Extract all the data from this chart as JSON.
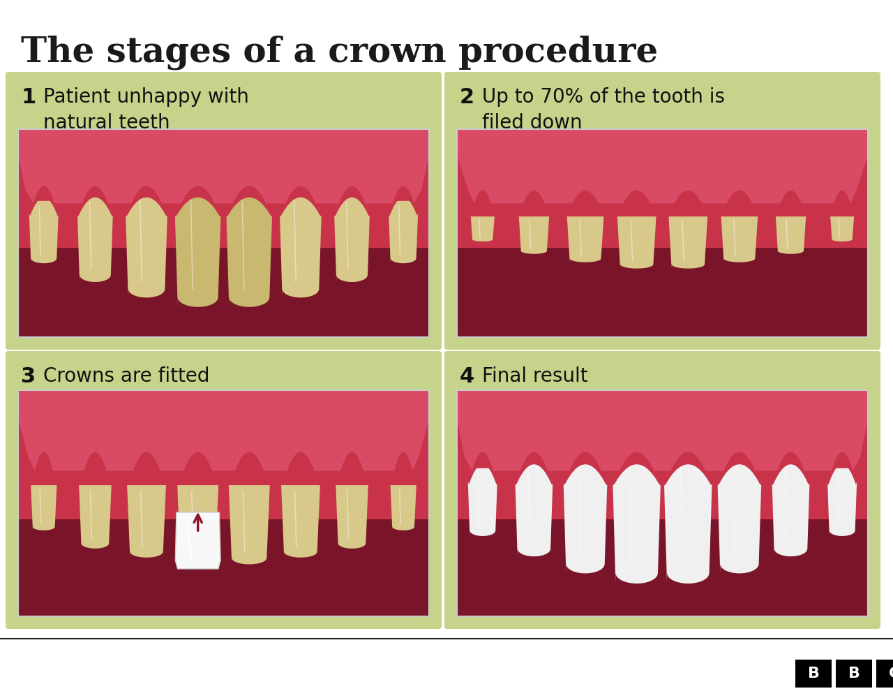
{
  "title": "The stages of a crown procedure",
  "title_fontsize": 36,
  "title_color": "#1a1a1a",
  "background_color": "#ffffff",
  "panel_bg": "#c5d48a",
  "gum_dark": "#c8334a",
  "gum_mid": "#d94060",
  "gum_light": "#e8607a",
  "mouth_bg": "#7a1428",
  "tooth_cream": "#d8c88a",
  "tooth_cream_dark": "#c0aa60",
  "tooth_white": "#f0f0f0",
  "tooth_white_hi": "#ffffff",
  "arrow_color": "#8b1428",
  "labels": [
    {
      "num": "1",
      "text": "Patient unhappy with\nnatural teeth"
    },
    {
      "num": "2",
      "text": "Up to 70% of the tooth is\nfiled down"
    },
    {
      "num": "3",
      "text": "Crowns are fitted"
    },
    {
      "num": "4",
      "text": "Final result"
    }
  ],
  "label_fontsize": 20,
  "num_fontsize": 22
}
